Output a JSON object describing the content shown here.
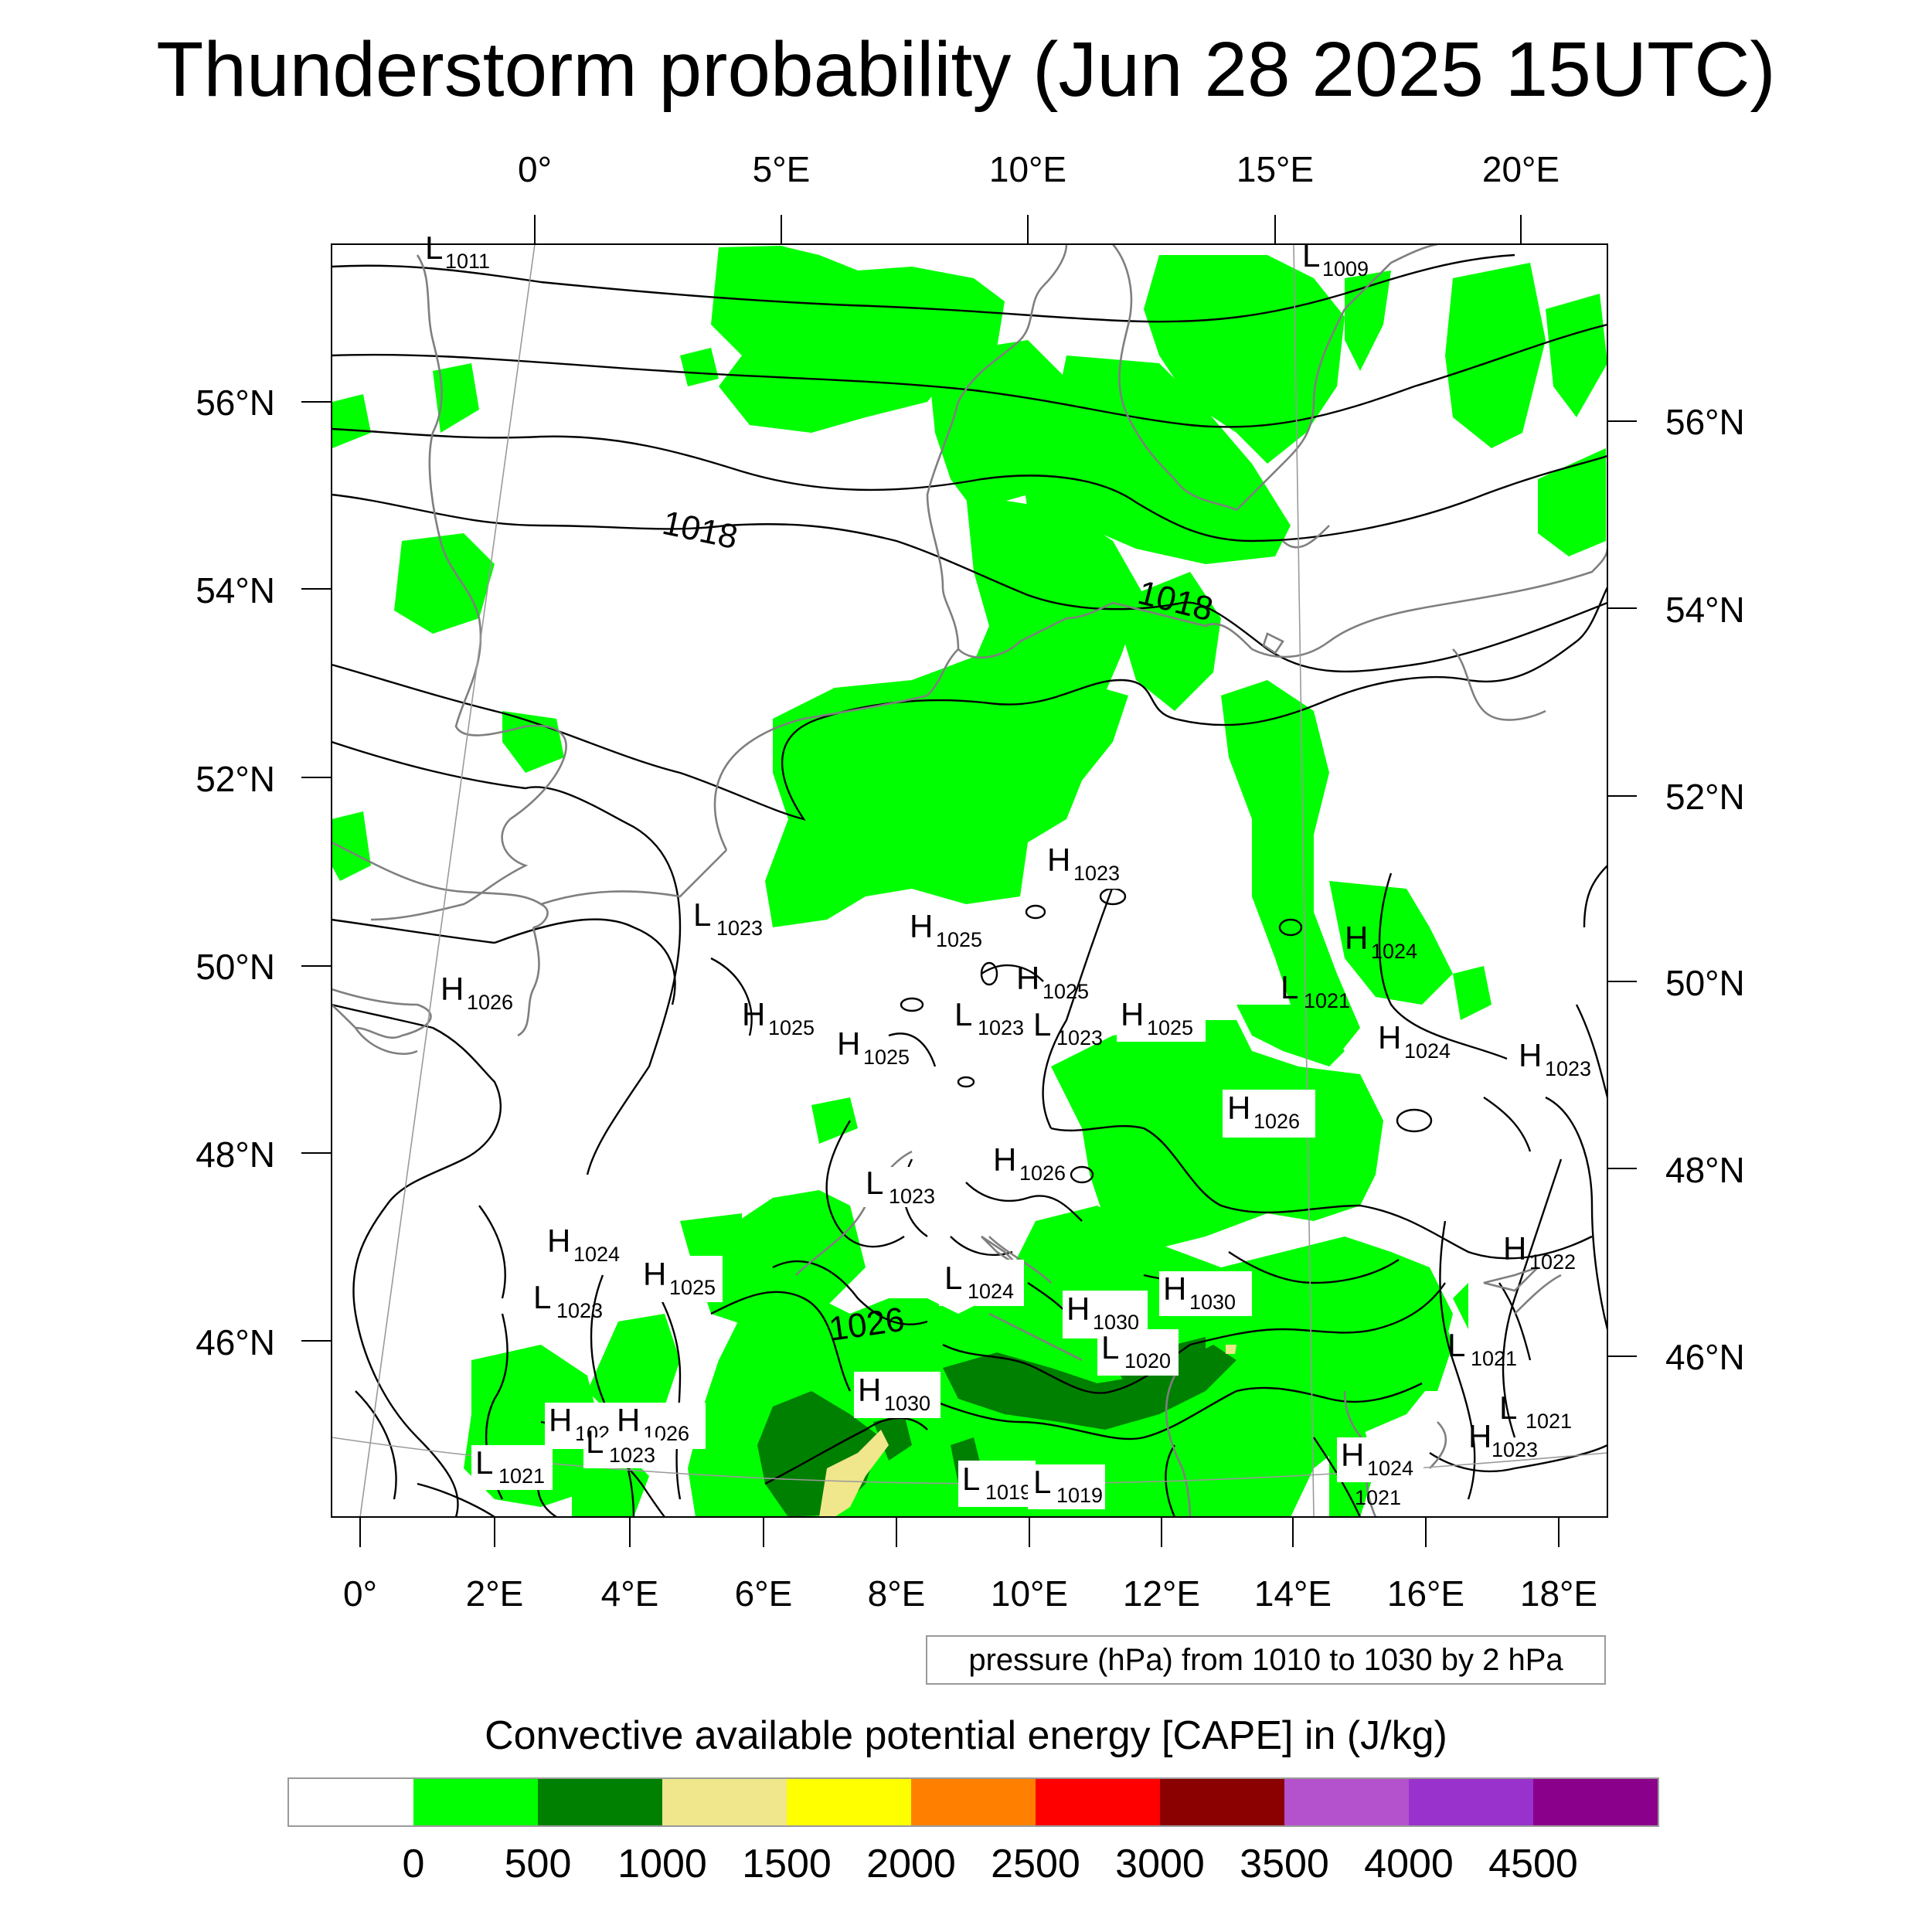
{
  "title": "Thunderstorm probability (Jun 28 2025 15UTC)",
  "map": {
    "top_lon_labels": [
      "0°",
      "5°E",
      "10°E",
      "15°E",
      "20°E"
    ],
    "bottom_lon_labels": [
      "0°",
      "2°E",
      "4°E",
      "6°E",
      "8°E",
      "10°E",
      "12°E",
      "14°E",
      "16°E",
      "18°E"
    ],
    "left_lat_labels": [
      "56°N",
      "54°N",
      "52°N",
      "50°N",
      "48°N",
      "46°N"
    ],
    "right_lat_labels": [
      "56°N",
      "54°N",
      "52°N",
      "50°N",
      "48°N",
      "46°N"
    ],
    "isobar_labels": [
      "1018",
      "1018",
      "1026"
    ],
    "pressure_centers": [
      {
        "type": "L",
        "value": "1011"
      },
      {
        "type": "L",
        "value": "1009"
      },
      {
        "type": "H",
        "value": "1023"
      },
      {
        "type": "L",
        "value": "1023"
      },
      {
        "type": "H",
        "value": "1025"
      },
      {
        "type": "H",
        "value": "1026"
      },
      {
        "type": "H",
        "value": "1025"
      },
      {
        "type": "L",
        "value": "1023"
      },
      {
        "type": "L",
        "value": "1023"
      },
      {
        "type": "H",
        "value": "1025"
      },
      {
        "type": "H",
        "value": "1025"
      },
      {
        "type": "H",
        "value": "1025"
      },
      {
        "type": "H",
        "value": "1024"
      },
      {
        "type": "L",
        "value": "1021"
      },
      {
        "type": "H",
        "value": "1024"
      },
      {
        "type": "H",
        "value": "1023"
      },
      {
        "type": "H",
        "value": "1026"
      },
      {
        "type": "H",
        "value": "1026"
      },
      {
        "type": "L",
        "value": "1023"
      },
      {
        "type": "H",
        "value": "1024"
      },
      {
        "type": "H",
        "value": "1025"
      },
      {
        "type": "L",
        "value": "1023"
      },
      {
        "type": "L",
        "value": "1024"
      },
      {
        "type": "H",
        "value": "1030"
      },
      {
        "type": "H",
        "value": "1030"
      },
      {
        "type": "L",
        "value": "1020"
      },
      {
        "type": "H",
        "value": "1022"
      },
      {
        "type": "L",
        "value": "1021"
      },
      {
        "type": "H",
        "value": "1030"
      },
      {
        "type": "H",
        "value": "102"
      },
      {
        "type": "H",
        "value": "1026"
      },
      {
        "type": "L",
        "value": "1023"
      },
      {
        "type": "L",
        "value": "1021"
      },
      {
        "type": "L",
        "value": "1019"
      },
      {
        "type": "L",
        "value": "1019"
      },
      {
        "type": "H",
        "value": "1024"
      },
      {
        "type": "L",
        "value": "1021"
      },
      {
        "type": "H",
        "value": "1023"
      },
      {
        "type": "L",
        "value": "1021"
      }
    ]
  },
  "contour_note": "pressure (hPa) from 1010 to 1030 by 2 hPa",
  "colorbar": {
    "title": "Convective available potential energy [CAPE] in (J/kg)",
    "colors": [
      "#ffffff",
      "#00ff00",
      "#008000",
      "#f0e68c",
      "#ffff00",
      "#ff8000",
      "#ff0000",
      "#8b0000",
      "#b452cd",
      "#9932cc",
      "#8b008b"
    ],
    "tick_labels": [
      "0",
      "500",
      "1000",
      "1500",
      "2000",
      "2500",
      "3000",
      "3500",
      "4000",
      "4500"
    ]
  }
}
